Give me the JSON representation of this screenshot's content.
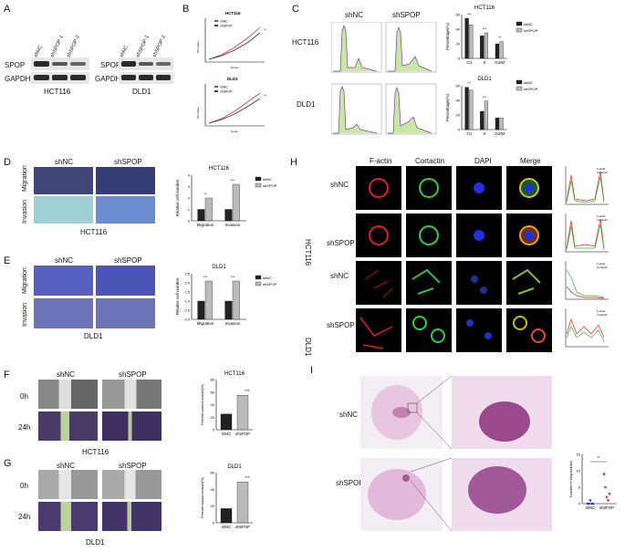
{
  "panels": {
    "A": "A",
    "B": "B",
    "C": "C",
    "D": "D",
    "E": "E",
    "F": "F",
    "G": "G",
    "H": "H",
    "I": "I"
  },
  "a": {
    "lanes_hct": [
      "shNC",
      "shSPOP-1",
      "shSPOP-2"
    ],
    "lanes_dld": [
      "shNC",
      "shSPOP-1",
      "shSPOP-2"
    ],
    "row1": "SPOP",
    "row2": "GAPDH",
    "cell1": "HCT116",
    "cell2": "DLD1"
  },
  "b": {
    "title1": "HCT116",
    "title2": "DLD1",
    "legend": [
      "shNC",
      "shSPOP"
    ],
    "xlabel": "Hours",
    "ylabel": "OD Value",
    "xticks": [
      "0",
      "24",
      "48",
      "72",
      "96"
    ]
  },
  "c": {
    "col1": "shNC",
    "col2": "shSPOP",
    "row1": "HCT116",
    "row2": "DLD1"
  },
  "d": {
    "col1": "shNC",
    "col2": "shSPOP",
    "row1": "Migration",
    "row2": "Invasion",
    "cell": "HCT116"
  },
  "e": {
    "col1": "shNC",
    "col2": "shSPOP",
    "row1": "Migration",
    "row2": "Invasion",
    "cell": "DLD1"
  },
  "f": {
    "col1": "shNC",
    "col2": "shSPOP",
    "row1": "0h",
    "row2": "24h",
    "cell": "HCT116"
  },
  "g": {
    "col1": "shNC",
    "col2": "shSPOP",
    "row1": "0h",
    "row2": "24h",
    "cell": "DLD1"
  },
  "h": {
    "cols": [
      "F-actin",
      "Cortactin",
      "DAPI",
      "Merge"
    ],
    "rows": [
      "shNC",
      "shSPOP",
      "shNC",
      "shSPOP"
    ],
    "group1": "HCT116",
    "group2": "DLD1",
    "legend": [
      "F-actin",
      "Cortactin"
    ],
    "ylabel": "Fluorescence intensity"
  },
  "i": {
    "row1": "shNC",
    "row2": "shSPOP"
  },
  "chart_data": [
    {
      "id": "C-HCT116",
      "type": "bar",
      "title": "HCT116",
      "categories": [
        "G1",
        "S",
        "G2/M"
      ],
      "ylabel": "Percentage(%)",
      "ylim": [
        0,
        60
      ],
      "yticks": [
        "0",
        "20",
        "40",
        "60"
      ],
      "series": [
        {
          "name": "shNC",
          "values": [
            55,
            31,
            20
          ]
        },
        {
          "name": "shSPOP",
          "values": [
            46,
            35,
            23
          ]
        }
      ],
      "annotations": [
        "***",
        "***",
        "**"
      ]
    },
    {
      "id": "C-DLD1",
      "type": "bar",
      "title": "DLD1",
      "categories": [
        "G1",
        "S",
        "G2/M"
      ],
      "ylabel": "Percentage(%)",
      "ylim": [
        0,
        60
      ],
      "yticks": [
        "0",
        "20",
        "40",
        "60"
      ],
      "series": [
        {
          "name": "shNC",
          "values": [
            58,
            25,
            16
          ]
        },
        {
          "name": "shSPOP",
          "values": [
            54,
            39,
            16
          ]
        }
      ],
      "annotations": [
        "**",
        "***",
        ""
      ]
    },
    {
      "id": "D",
      "type": "bar",
      "title": "HCT116",
      "categories": [
        "Migration",
        "Invasion"
      ],
      "ylabel": "Relative cell number",
      "ylim": [
        0,
        4
      ],
      "yticks": [
        "0",
        "1",
        "2",
        "3",
        "4"
      ],
      "series": [
        {
          "name": "shNC",
          "values": [
            1.0,
            1.0
          ]
        },
        {
          "name": "shSPOP",
          "values": [
            2.0,
            3.2
          ]
        }
      ],
      "annotations": [
        "**",
        "***"
      ]
    },
    {
      "id": "E",
      "type": "bar",
      "title": "DLD1",
      "categories": [
        "Migration",
        "Invasion"
      ],
      "ylabel": "Relative cell number",
      "ylim": [
        0,
        2.5
      ],
      "yticks": [
        "0.0",
        "0.5",
        "1.0",
        "1.5",
        "2.0",
        "2.5"
      ],
      "series": [
        {
          "name": "shNC",
          "values": [
            1.0,
            1.0
          ]
        },
        {
          "name": "shSPOP",
          "values": [
            2.1,
            2.1
          ]
        }
      ],
      "annotations": [
        "***",
        "***"
      ]
    },
    {
      "id": "F",
      "type": "bar",
      "title": "HCT116",
      "categories": [
        "shNC",
        "shSPOP"
      ],
      "ylabel": "Percent wound closure(%)",
      "ylim": [
        0,
        80
      ],
      "yticks": [
        "0",
        "20",
        "40",
        "60",
        "80"
      ],
      "series": [
        {
          "values": [
            25,
            55
          ]
        }
      ],
      "annotations": [
        "***"
      ]
    },
    {
      "id": "G",
      "type": "bar",
      "title": "DLD1",
      "categories": [
        "shNC",
        "shSPOP"
      ],
      "ylabel": "Percent wound closure(%)",
      "ylim": [
        0,
        60
      ],
      "yticks": [
        "0",
        "20",
        "40",
        "60"
      ],
      "series": [
        {
          "values": [
            17,
            49
          ]
        }
      ],
      "annotations": [
        "***"
      ]
    },
    {
      "id": "I",
      "type": "scatter",
      "categories": [
        "shNC",
        "shSPOP"
      ],
      "ylabel": "Number of lung nodules",
      "ylim": [
        0,
        15
      ],
      "yticks": [
        "0",
        "5",
        "10",
        "15"
      ],
      "series": [
        {
          "name": "shNC",
          "values": [
            0,
            0,
            1,
            0,
            0
          ]
        },
        {
          "name": "shSPOP",
          "values": [
            9,
            5,
            2,
            1,
            3
          ]
        }
      ],
      "annotations": [
        "*"
      ]
    }
  ]
}
